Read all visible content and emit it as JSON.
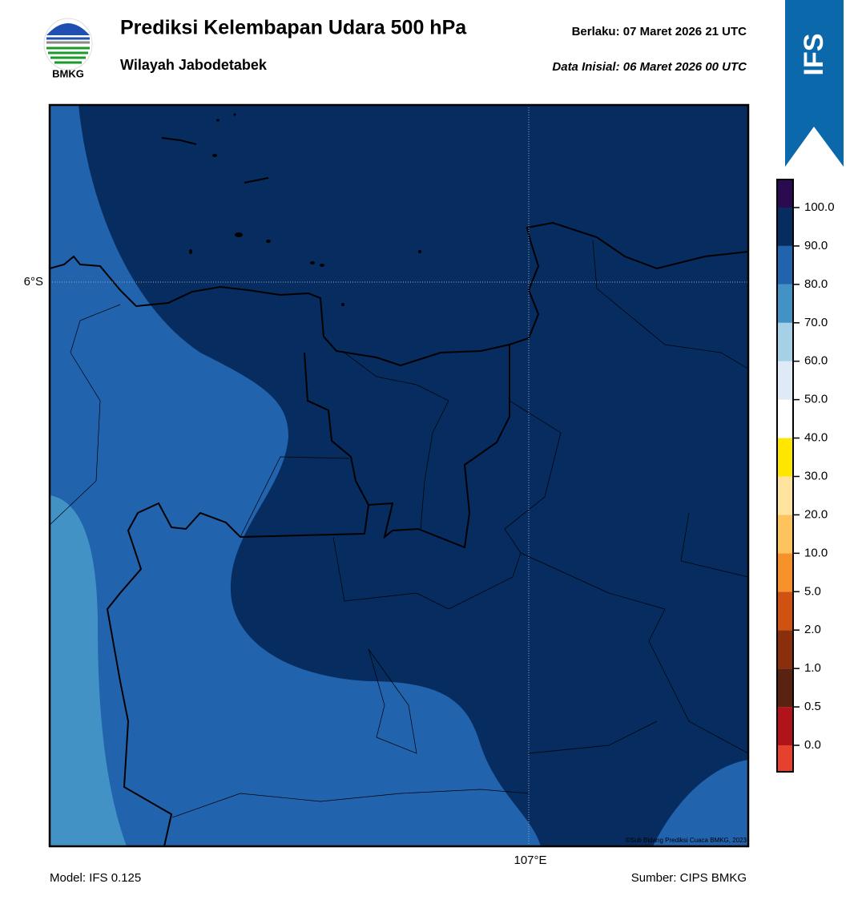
{
  "header": {
    "title": "Prediksi Kelembapan Udara 500 hPa",
    "subtitle": "Wilayah Jabodetabek",
    "valid": "Berlaku:  07 Maret 2026 21 UTC",
    "initial": "Data Inisial:  06 Maret 2026 00 UTC",
    "logo_text": "BMKG",
    "badge": "IFS"
  },
  "map": {
    "lat_label": "6°S",
    "lon_label": "107°E",
    "credit": "©Sub Bidang Prediksi Cuaca BMKG, 2023"
  },
  "colorbar": {
    "labels": [
      "0.0",
      "0.5",
      "1.0",
      "2.0",
      "5.0",
      "10.0",
      "20.0",
      "30.0",
      "40.0",
      "50.0",
      "60.0",
      "70.0",
      "80.0",
      "90.0",
      "100.0"
    ],
    "colors": [
      "#e6402e",
      "#b0141a",
      "#5a2210",
      "#8a2e0c",
      "#cf5210",
      "#f7922a",
      "#fdc45e",
      "#ffe4a0",
      "#ffe600",
      "#ffffff",
      "#deebf7",
      "#a6d0e6",
      "#4292c6",
      "#2263ae",
      "#072c60",
      "#2b0a50"
    ]
  },
  "footer": {
    "model": "Model: IFS 0.125",
    "source": "Sumber: CIPS BMKG"
  }
}
